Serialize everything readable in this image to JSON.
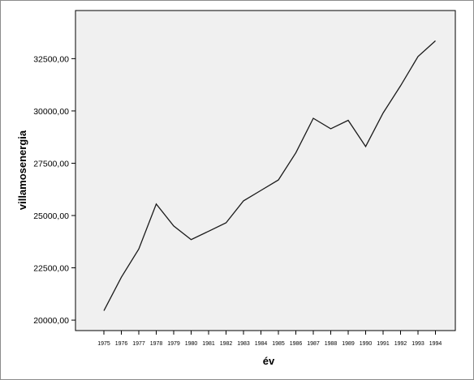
{
  "chart_data": {
    "type": "line",
    "xlabel": "év",
    "ylabel": "villamosenergia",
    "x": [
      "1975",
      "1976",
      "1977",
      "1978",
      "1979",
      "1980",
      "1981",
      "1982",
      "1983",
      "1984",
      "1985",
      "1986",
      "1987",
      "1988",
      "1989",
      "1990",
      "1991",
      "1992",
      "1993",
      "1994"
    ],
    "values": [
      20450,
      22050,
      23400,
      25550,
      24500,
      23850,
      24250,
      24650,
      25700,
      26200,
      26700,
      28000,
      29650,
      29150,
      29550,
      28300,
      29900,
      31200,
      32600,
      33350
    ],
    "ylim": [
      19500,
      34800
    ],
    "yticks": [
      20000,
      22500,
      25000,
      27500,
      30000,
      32500
    ],
    "ytick_labels": [
      "20000,00",
      "22500,00",
      "25000,00",
      "27500,00",
      "30000,00",
      "32500,00"
    ],
    "grid": false,
    "colors": {
      "plot_background": "#f0f0f0",
      "line": "#1a1a1a",
      "frame": "#8c8c8c"
    }
  }
}
